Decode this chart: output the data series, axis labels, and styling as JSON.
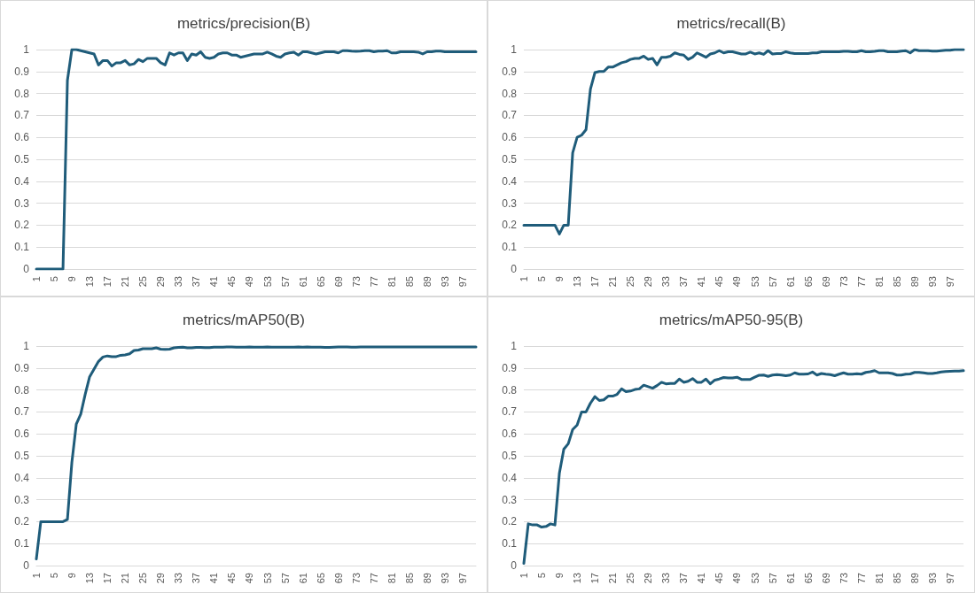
{
  "chart_data": [
    {
      "type": "line",
      "title": "metrics/precision(B)",
      "categories": [
        "1",
        null,
        null,
        null,
        "5",
        null,
        null,
        null,
        "9",
        null,
        null,
        null,
        "13",
        null,
        null,
        null,
        "17",
        null,
        null,
        null,
        "21",
        null,
        null,
        null,
        "25",
        null,
        null,
        null,
        "29",
        null,
        null,
        null,
        "33",
        null,
        null,
        null,
        "37",
        null,
        null,
        null,
        "41",
        null,
        null,
        null,
        "45",
        null,
        null,
        null,
        "49",
        null,
        null,
        null,
        "53",
        null,
        null,
        null,
        "57",
        null,
        null,
        null,
        "61",
        null,
        null,
        null,
        "65",
        null,
        null,
        null,
        "69",
        null,
        null,
        null,
        "73",
        null,
        null,
        null,
        "77",
        null,
        null,
        null,
        "81",
        null,
        null,
        null,
        "85",
        null,
        null,
        null,
        "89",
        null,
        null,
        null,
        "93",
        null,
        null,
        null,
        "97",
        null,
        null,
        null
      ],
      "series": [
        {
          "color": "#1f5c7a",
          "values": [
            0,
            0,
            0,
            0,
            0,
            0,
            0,
            0.86,
            1.0,
            1.0,
            0.995,
            0.99,
            0.985,
            0.98,
            0.93,
            0.95,
            0.95,
            0.925,
            0.94,
            0.94,
            0.95,
            0.93,
            0.935,
            0.955,
            0.945,
            0.96,
            0.96,
            0.96,
            0.94,
            0.93,
            0.985,
            0.975,
            0.985,
            0.985,
            0.95,
            0.98,
            0.975,
            0.99,
            0.965,
            0.96,
            0.965,
            0.98,
            0.985,
            0.985,
            0.975,
            0.975,
            0.965,
            0.97,
            0.975,
            0.98,
            0.98,
            0.98,
            0.988,
            0.98,
            0.97,
            0.965,
            0.98,
            0.985,
            0.988,
            0.975,
            0.99,
            0.99,
            0.985,
            0.98,
            0.985,
            0.99,
            0.99,
            0.99,
            0.985,
            0.995,
            0.995,
            0.993,
            0.992,
            0.993,
            0.995,
            0.995,
            0.99,
            0.993,
            0.993,
            0.995,
            0.985,
            0.985,
            0.99,
            0.99,
            0.99,
            0.99,
            0.988,
            0.98,
            0.99,
            0.99,
            0.993,
            0.993,
            0.99,
            0.99,
            0.99,
            0.99,
            0.99,
            0.99,
            0.99,
            0.99
          ]
        }
      ],
      "ylim": [
        0,
        1
      ],
      "yticks": [
        0,
        0.1,
        0.2,
        0.3,
        0.4,
        0.5,
        0.6,
        0.7,
        0.8,
        0.9,
        1
      ],
      "grid": "y",
      "marker": "none",
      "line_style": "solid"
    },
    {
      "type": "line",
      "title": "metrics/recall(B)",
      "categories": [
        "1",
        null,
        null,
        null,
        "5",
        null,
        null,
        null,
        "9",
        null,
        null,
        null,
        "13",
        null,
        null,
        null,
        "17",
        null,
        null,
        null,
        "21",
        null,
        null,
        null,
        "25",
        null,
        null,
        null,
        "29",
        null,
        null,
        null,
        "33",
        null,
        null,
        null,
        "37",
        null,
        null,
        null,
        "41",
        null,
        null,
        null,
        "45",
        null,
        null,
        null,
        "49",
        null,
        null,
        null,
        "53",
        null,
        null,
        null,
        "57",
        null,
        null,
        null,
        "61",
        null,
        null,
        null,
        "65",
        null,
        null,
        null,
        "69",
        null,
        null,
        null,
        "73",
        null,
        null,
        null,
        "77",
        null,
        null,
        null,
        "81",
        null,
        null,
        null,
        "85",
        null,
        null,
        null,
        "89",
        null,
        null,
        null,
        "93",
        null,
        null,
        null,
        "97",
        null,
        null,
        null
      ],
      "series": [
        {
          "color": "#1f5c7a",
          "values": [
            0.2,
            0.2,
            0.2,
            0.2,
            0.2,
            0.2,
            0.2,
            0.2,
            0.16,
            0.2,
            0.2,
            0.53,
            0.6,
            0.61,
            0.635,
            0.82,
            0.895,
            0.9,
            0.9,
            0.92,
            0.92,
            0.93,
            0.94,
            0.945,
            0.955,
            0.96,
            0.96,
            0.97,
            0.955,
            0.96,
            0.93,
            0.965,
            0.965,
            0.97,
            0.985,
            0.978,
            0.975,
            0.955,
            0.965,
            0.985,
            0.975,
            0.965,
            0.98,
            0.985,
            0.995,
            0.985,
            0.99,
            0.99,
            0.985,
            0.98,
            0.98,
            0.988,
            0.98,
            0.985,
            0.978,
            0.995,
            0.98,
            0.982,
            0.982,
            0.99,
            0.985,
            0.982,
            0.982,
            0.982,
            0.982,
            0.985,
            0.985,
            0.99,
            0.99,
            0.99,
            0.99,
            0.99,
            0.992,
            0.992,
            0.99,
            0.99,
            0.995,
            0.99,
            0.99,
            0.992,
            0.995,
            0.995,
            0.99,
            0.99,
            0.99,
            0.993,
            0.995,
            0.985,
            1.0,
            0.995,
            0.995,
            0.995,
            0.993,
            0.993,
            0.995,
            0.997,
            0.997,
            1.0,
            1.0,
            1.0
          ]
        }
      ],
      "ylim": [
        0,
        1
      ],
      "yticks": [
        0,
        0.1,
        0.2,
        0.3,
        0.4,
        0.5,
        0.6,
        0.7,
        0.8,
        0.9,
        1
      ],
      "grid": "y",
      "marker": "none",
      "line_style": "solid"
    },
    {
      "type": "line",
      "title": "metrics/mAP50(B)",
      "categories": [
        "1",
        null,
        null,
        null,
        "5",
        null,
        null,
        null,
        "9",
        null,
        null,
        null,
        "13",
        null,
        null,
        null,
        "17",
        null,
        null,
        null,
        "21",
        null,
        null,
        null,
        "25",
        null,
        null,
        null,
        "29",
        null,
        null,
        null,
        "33",
        null,
        null,
        null,
        "37",
        null,
        null,
        null,
        "41",
        null,
        null,
        null,
        "45",
        null,
        null,
        null,
        "49",
        null,
        null,
        null,
        "53",
        null,
        null,
        null,
        "57",
        null,
        null,
        null,
        "61",
        null,
        null,
        null,
        "65",
        null,
        null,
        null,
        "69",
        null,
        null,
        null,
        "73",
        null,
        null,
        null,
        "77",
        null,
        null,
        null,
        "81",
        null,
        null,
        null,
        "85",
        null,
        null,
        null,
        "89",
        null,
        null,
        null,
        "93",
        null,
        null,
        null,
        "97",
        null,
        null,
        null
      ],
      "series": [
        {
          "color": "#1f5c7a",
          "values": [
            0.03,
            0.2,
            0.2,
            0.2,
            0.2,
            0.2,
            0.2,
            0.21,
            0.47,
            0.645,
            0.69,
            0.78,
            0.86,
            0.895,
            0.93,
            0.95,
            0.955,
            0.952,
            0.952,
            0.958,
            0.96,
            0.965,
            0.98,
            0.982,
            0.988,
            0.988,
            0.988,
            0.992,
            0.986,
            0.985,
            0.986,
            0.992,
            0.994,
            0.995,
            0.992,
            0.992,
            0.994,
            0.994,
            0.993,
            0.993,
            0.995,
            0.995,
            0.995,
            0.996,
            0.996,
            0.995,
            0.995,
            0.995,
            0.996,
            0.995,
            0.995,
            0.995,
            0.996,
            0.995,
            0.995,
            0.995,
            0.995,
            0.995,
            0.995,
            0.996,
            0.995,
            0.996,
            0.995,
            0.995,
            0.995,
            0.994,
            0.994,
            0.995,
            0.996,
            0.996,
            0.996,
            0.995,
            0.995,
            0.996,
            0.996,
            0.996,
            0.996,
            0.996,
            0.996,
            0.996,
            0.996,
            0.996,
            0.996,
            0.996,
            0.996,
            0.996,
            0.996,
            0.996,
            0.996,
            0.996,
            0.996,
            0.996,
            0.996,
            0.996,
            0.996,
            0.996,
            0.996,
            0.996,
            0.996,
            0.996
          ]
        }
      ],
      "ylim": [
        0,
        1
      ],
      "yticks": [
        0,
        0.1,
        0.2,
        0.3,
        0.4,
        0.5,
        0.6,
        0.7,
        0.8,
        0.9,
        1
      ],
      "grid": "y",
      "marker": "none",
      "line_style": "solid"
    },
    {
      "type": "line",
      "title": "metrics/mAP50-95(B)",
      "categories": [
        "1",
        null,
        null,
        null,
        "5",
        null,
        null,
        null,
        "9",
        null,
        null,
        null,
        "13",
        null,
        null,
        null,
        "17",
        null,
        null,
        null,
        "21",
        null,
        null,
        null,
        "25",
        null,
        null,
        null,
        "29",
        null,
        null,
        null,
        "33",
        null,
        null,
        null,
        "37",
        null,
        null,
        null,
        "41",
        null,
        null,
        null,
        "45",
        null,
        null,
        null,
        "49",
        null,
        null,
        null,
        "53",
        null,
        null,
        null,
        "57",
        null,
        null,
        null,
        "61",
        null,
        null,
        null,
        "65",
        null,
        null,
        null,
        "69",
        null,
        null,
        null,
        "73",
        null,
        null,
        null,
        "77",
        null,
        null,
        null,
        "81",
        null,
        null,
        null,
        "85",
        null,
        null,
        null,
        "89",
        null,
        null,
        null,
        "93",
        null,
        null,
        null,
        "97",
        null,
        null,
        null
      ],
      "series": [
        {
          "color": "#1f5c7a",
          "values": [
            0.01,
            0.19,
            0.185,
            0.185,
            0.175,
            0.178,
            0.19,
            0.185,
            0.42,
            0.53,
            0.555,
            0.62,
            0.64,
            0.7,
            0.7,
            0.74,
            0.77,
            0.752,
            0.755,
            0.772,
            0.772,
            0.78,
            0.805,
            0.792,
            0.795,
            0.802,
            0.805,
            0.822,
            0.815,
            0.808,
            0.82,
            0.835,
            0.828,
            0.83,
            0.83,
            0.85,
            0.835,
            0.84,
            0.852,
            0.835,
            0.835,
            0.85,
            0.828,
            0.845,
            0.85,
            0.857,
            0.855,
            0.855,
            0.858,
            0.848,
            0.848,
            0.848,
            0.858,
            0.867,
            0.868,
            0.862,
            0.868,
            0.87,
            0.868,
            0.865,
            0.868,
            0.878,
            0.872,
            0.872,
            0.873,
            0.882,
            0.868,
            0.875,
            0.872,
            0.87,
            0.865,
            0.872,
            0.878,
            0.872,
            0.872,
            0.874,
            0.872,
            0.88,
            0.883,
            0.888,
            0.878,
            0.878,
            0.878,
            0.875,
            0.868,
            0.868,
            0.872,
            0.873,
            0.88,
            0.88,
            0.878,
            0.875,
            0.875,
            0.878,
            0.882,
            0.884,
            0.885,
            0.886,
            0.886,
            0.888
          ]
        }
      ],
      "ylim": [
        0,
        1
      ],
      "yticks": [
        0,
        0.1,
        0.2,
        0.3,
        0.4,
        0.5,
        0.6,
        0.7,
        0.8,
        0.9,
        1
      ],
      "grid": "y",
      "marker": "none",
      "line_style": "solid"
    }
  ]
}
